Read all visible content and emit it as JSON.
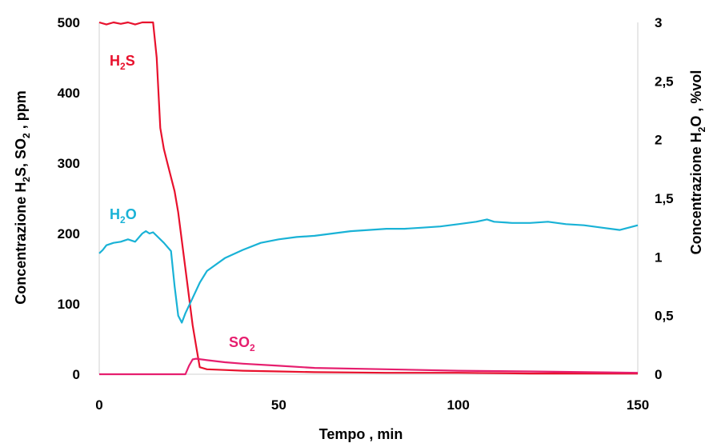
{
  "chart_data": {
    "type": "line",
    "xlabel": "Tempo , min",
    "ylabel_left": {
      "text": "Concentrazione H",
      "sub1": "2",
      "text2": "S, SO",
      "sub2": "2",
      "text3": " , ppm"
    },
    "ylabel_right": {
      "text": "Concentrazione H",
      "sub1": "2",
      "text2": "O , %vol"
    },
    "xlim": [
      0,
      150
    ],
    "ylim_left": [
      0,
      500
    ],
    "ylim_right": [
      0,
      3
    ],
    "x_ticks": [
      "0",
      "50",
      "100",
      "150"
    ],
    "y_left_ticks": [
      "0",
      "100",
      "200",
      "300",
      "400",
      "500"
    ],
    "y_right_ticks": [
      "0",
      "0,5",
      "1",
      "1,5",
      "2",
      "2,5",
      "3"
    ],
    "grid": false,
    "series": [
      {
        "name": "H2S",
        "label": {
          "main": "H",
          "sub": "2",
          "tail": "S"
        },
        "axis": "left",
        "color": "#e8112d",
        "x": [
          0,
          2,
          4,
          6,
          8,
          10,
          12,
          14,
          15,
          16,
          17,
          18,
          19,
          20,
          21,
          22,
          23,
          24,
          25,
          26,
          27,
          28,
          30,
          35,
          40,
          50,
          60,
          80,
          100,
          120,
          150
        ],
        "y": [
          500,
          497,
          500,
          498,
          500,
          497,
          500,
          500,
          500,
          450,
          350,
          320,
          300,
          280,
          260,
          230,
          190,
          150,
          110,
          70,
          40,
          10,
          7,
          6,
          5,
          4,
          3,
          2,
          2,
          1,
          1
        ]
      },
      {
        "name": "SO2",
        "label": {
          "main": "SO",
          "sub": "2",
          "tail": ""
        },
        "axis": "left",
        "color": "#e61e6e",
        "x": [
          0,
          10,
          20,
          24,
          25,
          26,
          27,
          30,
          35,
          40,
          50,
          60,
          80,
          100,
          120,
          150
        ],
        "y": [
          0,
          0,
          0,
          0,
          12,
          21,
          22,
          20,
          17,
          15,
          12,
          9,
          7,
          5,
          4,
          2
        ]
      },
      {
        "name": "H2O",
        "label": {
          "main": "H",
          "sub": "2",
          "tail": "O"
        },
        "axis": "right",
        "color": "#19b2d6",
        "x": [
          0,
          1,
          2,
          4,
          6,
          8,
          10,
          12,
          13,
          14,
          15,
          16,
          18,
          20,
          21,
          22,
          23,
          24,
          26,
          28,
          30,
          35,
          40,
          45,
          50,
          55,
          60,
          65,
          70,
          75,
          80,
          85,
          90,
          95,
          100,
          105,
          108,
          110,
          115,
          120,
          125,
          130,
          135,
          140,
          145,
          150
        ],
        "y": [
          1.03,
          1.06,
          1.1,
          1.12,
          1.13,
          1.15,
          1.13,
          1.2,
          1.22,
          1.2,
          1.21,
          1.18,
          1.12,
          1.05,
          0.75,
          0.5,
          0.44,
          0.52,
          0.65,
          0.78,
          0.88,
          0.99,
          1.06,
          1.12,
          1.15,
          1.17,
          1.18,
          1.2,
          1.22,
          1.23,
          1.24,
          1.24,
          1.25,
          1.26,
          1.28,
          1.3,
          1.32,
          1.3,
          1.29,
          1.29,
          1.3,
          1.28,
          1.27,
          1.25,
          1.23,
          1.27
        ]
      }
    ]
  }
}
